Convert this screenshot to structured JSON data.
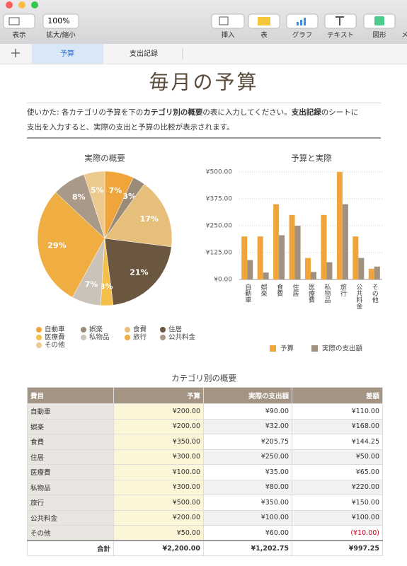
{
  "toolbar": {
    "zoom": "100%",
    "buttons": [
      "表示",
      "拡大/縮小",
      "挿入",
      "表",
      "グラフ",
      "テキスト",
      "図形",
      "メ"
    ]
  },
  "tabs": [
    "予算",
    "支出記録"
  ],
  "title": "毎月の予算",
  "instructions": [
    "使いかた: 各カテゴリの予算を下の",
    "カテゴリ別の概要",
    "の表に入力してください。",
    "支出記録",
    "のシートに",
    "支出を入力すると、実際の支出と予算の比較が表示されます。"
  ],
  "chart_data": [
    {
      "type": "pie",
      "title": "実際の概要",
      "categories": [
        "自動車",
        "娯楽",
        "食費",
        "住居",
        "医療費",
        "私物品",
        "旅行",
        "公共料金",
        "その他"
      ],
      "values": [
        7,
        3,
        17,
        21,
        3,
        7,
        29,
        8,
        5
      ],
      "value_labels": [
        "7%",
        "3%",
        "17%",
        "21%",
        "3%",
        "7%",
        "29%",
        "8%",
        "5%"
      ],
      "colors": [
        "#f0a53a",
        "#9a8a78",
        "#e6c07a",
        "#6b5640",
        "#f5c04a",
        "#cbc3ba",
        "#f0ae42",
        "#a99988",
        "#ecc98c"
      ]
    },
    {
      "type": "bar",
      "title": "予算と実際",
      "categories": [
        "自動車",
        "娯楽",
        "食費",
        "住居",
        "医療費",
        "私物品",
        "旅行",
        "公共料金",
        "その他"
      ],
      "series": [
        {
          "name": "予算",
          "color": "#f0a53a",
          "values": [
            200,
            200,
            350,
            300,
            100,
            300,
            500,
            200,
            50
          ]
        },
        {
          "name": "実際の支出額",
          "color": "#a09080",
          "values": [
            90,
            32,
            205.75,
            250,
            35,
            80,
            350,
            100,
            60
          ]
        }
      ],
      "ylim": [
        0,
        500
      ],
      "yticks": [
        {
          "value": 0,
          "label": "¥0.00"
        },
        {
          "value": 125,
          "label": "¥125.00"
        },
        {
          "value": 250,
          "label": "¥250.00"
        },
        {
          "value": 375,
          "label": "¥375.00"
        },
        {
          "value": 500,
          "label": "¥500.00"
        }
      ],
      "grid": true
    }
  ],
  "table": {
    "title": "カテゴリ別の概要",
    "header": [
      "費目",
      "予算",
      "実際の支出額",
      "差額"
    ],
    "rows": [
      [
        "自動車",
        "¥200.00",
        "¥90.00",
        "¥110.00"
      ],
      [
        "娯楽",
        "¥200.00",
        "¥32.00",
        "¥168.00"
      ],
      [
        "食費",
        "¥350.00",
        "¥205.75",
        "¥144.25"
      ],
      [
        "住居",
        "¥300.00",
        "¥250.00",
        "¥50.00"
      ],
      [
        "医療費",
        "¥100.00",
        "¥35.00",
        "¥65.00"
      ],
      [
        "私物品",
        "¥300.00",
        "¥80.00",
        "¥220.00"
      ],
      [
        "旅行",
        "¥500.00",
        "¥350.00",
        "¥150.00"
      ],
      [
        "公共料金",
        "¥200.00",
        "¥100.00",
        "¥100.00"
      ],
      [
        "その他",
        "¥50.00",
        "¥60.00",
        "(¥10.00)"
      ]
    ],
    "total": [
      "合計",
      "¥2,200.00",
      "¥1,202.75",
      "¥997.25"
    ]
  }
}
